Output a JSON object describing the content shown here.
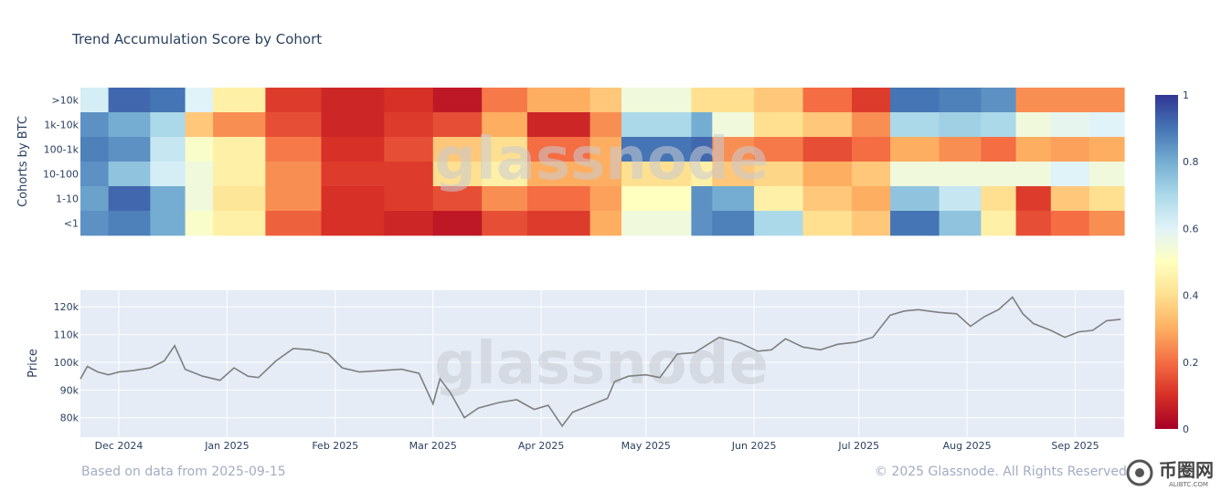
{
  "title": "Trend Accumulation Score by Cohort",
  "watermark": "glassnode",
  "footer_left": "Based on data from 2025-09-15",
  "footer_right": "© 2025 Glassnode. All Rights Reserved",
  "site_logo": {
    "name": "币圈网",
    "sub": "ALIBTC.COM"
  },
  "colors": {
    "scale_low": "#a50026",
    "scale_mid": "#ffffbf",
    "scale_high": "#313695",
    "price_line": "#7f7f7f",
    "panel_bg": "#e5ecf6"
  },
  "chart_data": [
    {
      "type": "heatmap",
      "title": "Trend Accumulation Score by Cohort",
      "ylabel": "Cohorts by BTC",
      "rows": [
        ">10k",
        "1k-10k",
        "100-1k",
        "10-100",
        "1-10",
        "<1"
      ],
      "colorscale": "RdYlBu",
      "zlim": [
        0,
        1
      ],
      "colorbar_ticks": [
        "0",
        "0.2",
        "0.4",
        "0.6",
        "0.8",
        "1"
      ],
      "x_range": [
        "2024-11-20",
        "2025-09-15"
      ],
      "segments": [
        {
          "start": "2024-11-20",
          "values": [
            0.62,
            0.85,
            0.88,
            0.85,
            0.82,
            0.85
          ]
        },
        {
          "start": "2024-11-28",
          "values": [
            0.92,
            0.8,
            0.85,
            0.75,
            0.92,
            0.88
          ]
        },
        {
          "start": "2024-12-10",
          "values": [
            0.9,
            0.7,
            0.65,
            0.62,
            0.8,
            0.8
          ]
        },
        {
          "start": "2024-12-20",
          "values": [
            0.6,
            0.35,
            0.52,
            0.55,
            0.55,
            0.52
          ]
        },
        {
          "start": "2024-12-28",
          "values": [
            0.45,
            0.25,
            0.45,
            0.45,
            0.42,
            0.45
          ]
        },
        {
          "start": "2025-01-12",
          "values": [
            0.12,
            0.15,
            0.22,
            0.25,
            0.25,
            0.18
          ]
        },
        {
          "start": "2025-01-28",
          "values": [
            0.08,
            0.08,
            0.1,
            0.12,
            0.1,
            0.1
          ]
        },
        {
          "start": "2025-02-15",
          "values": [
            0.1,
            0.12,
            0.15,
            0.12,
            0.12,
            0.08
          ]
        },
        {
          "start": "2025-03-01",
          "values": [
            0.05,
            0.15,
            0.35,
            0.4,
            0.15,
            0.05
          ]
        },
        {
          "start": "2025-03-15",
          "values": [
            0.22,
            0.3,
            0.4,
            0.45,
            0.25,
            0.15
          ]
        },
        {
          "start": "2025-03-28",
          "values": [
            0.3,
            0.08,
            0.2,
            0.3,
            0.2,
            0.12
          ]
        },
        {
          "start": "2025-04-15",
          "values": [
            0.35,
            0.25,
            0.3,
            0.3,
            0.28,
            0.3
          ]
        },
        {
          "start": "2025-04-24",
          "values": [
            0.55,
            0.7,
            0.9,
            0.4,
            0.5,
            0.55
          ]
        },
        {
          "start": "2025-05-14",
          "values": [
            0.4,
            0.8,
            0.92,
            0.45,
            0.85,
            0.85
          ]
        },
        {
          "start": "2025-05-20",
          "values": [
            0.4,
            0.55,
            0.25,
            0.35,
            0.8,
            0.88
          ]
        },
        {
          "start": "2025-06-01",
          "values": [
            0.35,
            0.4,
            0.22,
            0.38,
            0.45,
            0.7
          ]
        },
        {
          "start": "2025-06-15",
          "values": [
            0.2,
            0.35,
            0.15,
            0.3,
            0.35,
            0.4
          ]
        },
        {
          "start": "2025-06-29",
          "values": [
            0.12,
            0.25,
            0.2,
            0.35,
            0.3,
            0.35
          ]
        },
        {
          "start": "2025-07-10",
          "values": [
            0.9,
            0.7,
            0.3,
            0.55,
            0.75,
            0.9
          ]
        },
        {
          "start": "2025-07-24",
          "values": [
            0.88,
            0.72,
            0.25,
            0.55,
            0.65,
            0.75
          ]
        },
        {
          "start": "2025-08-05",
          "values": [
            0.85,
            0.7,
            0.2,
            0.55,
            0.4,
            0.45
          ]
        },
        {
          "start": "2025-08-15",
          "values": [
            0.25,
            0.55,
            0.3,
            0.55,
            0.12,
            0.15
          ]
        },
        {
          "start": "2025-08-25",
          "values": [
            0.25,
            0.58,
            0.28,
            0.6,
            0.35,
            0.2
          ]
        },
        {
          "start": "2025-09-05",
          "values": [
            0.25,
            0.6,
            0.3,
            0.55,
            0.4,
            0.25
          ]
        }
      ]
    },
    {
      "type": "line",
      "ylabel": "Price",
      "ylim": [
        73000,
        126000
      ],
      "yticks": [
        "80k",
        "90k",
        "100k",
        "110k",
        "120k"
      ],
      "xticks": [
        "Dec 2024",
        "Jan 2025",
        "Feb 2025",
        "Mar 2025",
        "Apr 2025",
        "May 2025",
        "Jun 2025",
        "Jul 2025",
        "Aug 2025",
        "Sep 2025"
      ],
      "series": [
        {
          "x": [
            "2024-11-20",
            "2024-11-22",
            "2024-11-25",
            "2024-11-28",
            "2024-12-01",
            "2024-12-05",
            "2024-12-10",
            "2024-12-14",
            "2024-12-17",
            "2024-12-20",
            "2024-12-25",
            "2024-12-30",
            "2025-01-03",
            "2025-01-07",
            "2025-01-10",
            "2025-01-15",
            "2025-01-20",
            "2025-01-25",
            "2025-01-30",
            "2025-02-03",
            "2025-02-08",
            "2025-02-14",
            "2025-02-20",
            "2025-02-25",
            "2025-03-01",
            "2025-03-03",
            "2025-03-06",
            "2025-03-10",
            "2025-03-14",
            "2025-03-20",
            "2025-03-25",
            "2025-03-30",
            "2025-04-03",
            "2025-04-07",
            "2025-04-10",
            "2025-04-15",
            "2025-04-20",
            "2025-04-22",
            "2025-04-26",
            "2025-05-01",
            "2025-05-05",
            "2025-05-10",
            "2025-05-15",
            "2025-05-22",
            "2025-05-28",
            "2025-06-02",
            "2025-06-06",
            "2025-06-10",
            "2025-06-15",
            "2025-06-20",
            "2025-06-25",
            "2025-06-30",
            "2025-07-05",
            "2025-07-10",
            "2025-07-14",
            "2025-07-18",
            "2025-07-24",
            "2025-07-29",
            "2025-08-02",
            "2025-08-06",
            "2025-08-10",
            "2025-08-14",
            "2025-08-17",
            "2025-08-20",
            "2025-08-25",
            "2025-08-29",
            "2025-09-02",
            "2025-09-06",
            "2025-09-10",
            "2025-09-14"
          ],
          "y": [
            94000,
            98500,
            96500,
            95500,
            96500,
            97000,
            98000,
            100500,
            106000,
            97500,
            95000,
            93500,
            98000,
            95000,
            94500,
            100500,
            105000,
            104500,
            103000,
            98000,
            96500,
            97000,
            97500,
            96000,
            85000,
            94000,
            89000,
            80000,
            83500,
            85500,
            86500,
            83000,
            84500,
            77000,
            82000,
            84500,
            87000,
            93000,
            95000,
            95500,
            94500,
            103000,
            103500,
            109000,
            107000,
            104000,
            104500,
            108500,
            105500,
            104500,
            106500,
            107200,
            109000,
            117000,
            118500,
            119000,
            118000,
            117500,
            113000,
            116500,
            119000,
            123500,
            117500,
            114000,
            111500,
            109000,
            111000,
            111500,
            115000,
            115500
          ]
        }
      ]
    }
  ]
}
